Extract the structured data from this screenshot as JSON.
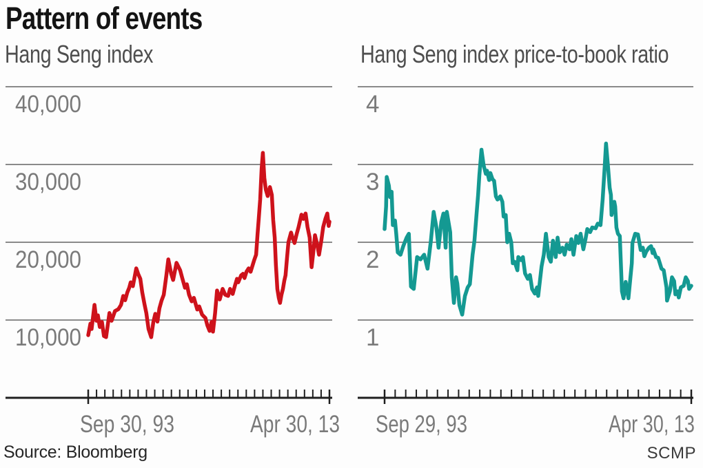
{
  "header": {
    "title": "Pattern of events"
  },
  "footer": {
    "source": "Source: Bloomberg",
    "credit": "SCMP"
  },
  "colors": {
    "left_line": "#ce121b",
    "right_line": "#149992",
    "grid": "#8a8a8a",
    "axis": "#1f1f1f",
    "label": "#7a7a7a"
  },
  "chart_data": [
    {
      "type": "line",
      "title": "Hang Seng index",
      "color": "#ce121b",
      "ylim": [
        0,
        40000
      ],
      "grid": true,
      "y_ticks": [
        {
          "value": 40000,
          "label": "40,000"
        },
        {
          "value": 30000,
          "label": "30,000"
        },
        {
          "value": 20000,
          "label": "20,000"
        },
        {
          "value": 10000,
          "label": "10,000"
        }
      ],
      "x_ticks": [
        {
          "label": "Sep 30, 93"
        },
        {
          "label": "Apr 30, 13"
        }
      ],
      "points": [
        [
          0.0,
          8050
        ],
        [
          0.009,
          9550
        ],
        [
          0.014,
          8850
        ],
        [
          0.026,
          11950
        ],
        [
          0.034,
          9900
        ],
        [
          0.04,
          10600
        ],
        [
          0.048,
          9100
        ],
        [
          0.057,
          9750
        ],
        [
          0.065,
          7950
        ],
        [
          0.074,
          7800
        ],
        [
          0.088,
          10900
        ],
        [
          0.097,
          9900
        ],
        [
          0.111,
          11150
        ],
        [
          0.125,
          11400
        ],
        [
          0.136,
          11950
        ],
        [
          0.145,
          13100
        ],
        [
          0.153,
          12550
        ],
        [
          0.162,
          13550
        ],
        [
          0.17,
          14150
        ],
        [
          0.176,
          14850
        ],
        [
          0.185,
          14350
        ],
        [
          0.199,
          16650
        ],
        [
          0.207,
          15950
        ],
        [
          0.216,
          15300
        ],
        [
          0.224,
          13550
        ],
        [
          0.233,
          12050
        ],
        [
          0.241,
          10900
        ],
        [
          0.25,
          8850
        ],
        [
          0.261,
          7800
        ],
        [
          0.27,
          9750
        ],
        [
          0.278,
          10800
        ],
        [
          0.287,
          9800
        ],
        [
          0.295,
          11500
        ],
        [
          0.304,
          12500
        ],
        [
          0.313,
          13250
        ],
        [
          0.324,
          15750
        ],
        [
          0.332,
          17800
        ],
        [
          0.344,
          15950
        ],
        [
          0.352,
          15150
        ],
        [
          0.366,
          17350
        ],
        [
          0.381,
          16400
        ],
        [
          0.389,
          15500
        ],
        [
          0.401,
          14150
        ],
        [
          0.409,
          14600
        ],
        [
          0.418,
          13250
        ],
        [
          0.429,
          12400
        ],
        [
          0.438,
          12850
        ],
        [
          0.452,
          11350
        ],
        [
          0.46,
          11750
        ],
        [
          0.472,
          10700
        ],
        [
          0.486,
          10250
        ],
        [
          0.494,
          9300
        ],
        [
          0.503,
          8600
        ],
        [
          0.511,
          9750
        ],
        [
          0.517,
          8500
        ],
        [
          0.526,
          10900
        ],
        [
          0.534,
          13800
        ],
        [
          0.545,
          12650
        ],
        [
          0.557,
          14000
        ],
        [
          0.568,
          13250
        ],
        [
          0.58,
          13100
        ],
        [
          0.588,
          14000
        ],
        [
          0.599,
          13350
        ],
        [
          0.608,
          14400
        ],
        [
          0.617,
          15300
        ],
        [
          0.622,
          14850
        ],
        [
          0.634,
          15750
        ],
        [
          0.642,
          15950
        ],
        [
          0.648,
          15400
        ],
        [
          0.656,
          16200
        ],
        [
          0.665,
          16650
        ],
        [
          0.673,
          16200
        ],
        [
          0.682,
          17100
        ],
        [
          0.688,
          17700
        ],
        [
          0.696,
          18400
        ],
        [
          0.702,
          21050
        ],
        [
          0.707,
          23000
        ],
        [
          0.713,
          25500
        ],
        [
          0.719,
          29450
        ],
        [
          0.724,
          31500
        ],
        [
          0.73,
          28300
        ],
        [
          0.736,
          26800
        ],
        [
          0.744,
          25950
        ],
        [
          0.753,
          27100
        ],
        [
          0.761,
          26100
        ],
        [
          0.767,
          22850
        ],
        [
          0.773,
          20600
        ],
        [
          0.778,
          17100
        ],
        [
          0.784,
          14000
        ],
        [
          0.79,
          12850
        ],
        [
          0.795,
          12200
        ],
        [
          0.801,
          13250
        ],
        [
          0.807,
          14000
        ],
        [
          0.813,
          15050
        ],
        [
          0.818,
          15750
        ],
        [
          0.824,
          17950
        ],
        [
          0.83,
          20000
        ],
        [
          0.835,
          20600
        ],
        [
          0.841,
          21250
        ],
        [
          0.847,
          20600
        ],
        [
          0.855,
          19900
        ],
        [
          0.864,
          21050
        ],
        [
          0.872,
          21950
        ],
        [
          0.884,
          23550
        ],
        [
          0.892,
          23000
        ],
        [
          0.901,
          23700
        ],
        [
          0.909,
          21950
        ],
        [
          0.918,
          20600
        ],
        [
          0.926,
          16800
        ],
        [
          0.935,
          19300
        ],
        [
          0.94,
          20900
        ],
        [
          0.949,
          19750
        ],
        [
          0.957,
          18400
        ],
        [
          0.966,
          20150
        ],
        [
          0.974,
          21950
        ],
        [
          0.983,
          23000
        ],
        [
          0.991,
          23700
        ],
        [
          0.997,
          22100
        ],
        [
          1.0,
          22650
        ]
      ]
    },
    {
      "type": "line",
      "title": "Hang Seng index price-to-book ratio",
      "color": "#149992",
      "ylim": [
        0,
        4
      ],
      "grid": true,
      "y_ticks": [
        {
          "value": 4,
          "label": "4"
        },
        {
          "value": 3,
          "label": "3"
        },
        {
          "value": 2,
          "label": "2"
        },
        {
          "value": 1,
          "label": "1"
        }
      ],
      "x_ticks": [
        {
          "label": "Sep 29, 93"
        },
        {
          "label": "Apr 30, 13"
        }
      ],
      "points": [
        [
          0.0,
          2.17
        ],
        [
          0.005,
          2.46
        ],
        [
          0.007,
          2.84
        ],
        [
          0.014,
          2.73
        ],
        [
          0.018,
          2.58
        ],
        [
          0.023,
          2.65
        ],
        [
          0.027,
          2.22
        ],
        [
          0.034,
          2.28
        ],
        [
          0.038,
          2.11
        ],
        [
          0.043,
          1.87
        ],
        [
          0.052,
          1.84
        ],
        [
          0.061,
          1.95
        ],
        [
          0.072,
          2.06
        ],
        [
          0.079,
          2.11
        ],
        [
          0.086,
          1.43
        ],
        [
          0.095,
          1.4
        ],
        [
          0.106,
          1.81
        ],
        [
          0.117,
          1.78
        ],
        [
          0.129,
          1.84
        ],
        [
          0.14,
          1.66
        ],
        [
          0.151,
          2.02
        ],
        [
          0.16,
          2.39
        ],
        [
          0.169,
          2.19
        ],
        [
          0.176,
          1.93
        ],
        [
          0.185,
          2.26
        ],
        [
          0.192,
          2.37
        ],
        [
          0.199,
          1.93
        ],
        [
          0.203,
          2.39
        ],
        [
          0.214,
          2.13
        ],
        [
          0.219,
          1.55
        ],
        [
          0.226,
          1.22
        ],
        [
          0.233,
          1.55
        ],
        [
          0.237,
          1.47
        ],
        [
          0.244,
          1.19
        ],
        [
          0.253,
          1.07
        ],
        [
          0.262,
          1.31
        ],
        [
          0.271,
          1.42
        ],
        [
          0.278,
          1.46
        ],
        [
          0.287,
          1.84
        ],
        [
          0.293,
          2.02
        ],
        [
          0.3,
          2.37
        ],
        [
          0.305,
          2.61
        ],
        [
          0.309,
          2.86
        ],
        [
          0.316,
          3.19
        ],
        [
          0.323,
          2.99
        ],
        [
          0.33,
          2.88
        ],
        [
          0.334,
          2.92
        ],
        [
          0.341,
          2.8
        ],
        [
          0.345,
          2.89
        ],
        [
          0.352,
          2.81
        ],
        [
          0.357,
          2.79
        ],
        [
          0.363,
          2.59
        ],
        [
          0.368,
          2.55
        ],
        [
          0.377,
          2.59
        ],
        [
          0.384,
          2.52
        ],
        [
          0.388,
          2.33
        ],
        [
          0.395,
          2.35
        ],
        [
          0.4,
          2.0
        ],
        [
          0.406,
          2.11
        ],
        [
          0.413,
          2.0
        ],
        [
          0.418,
          1.73
        ],
        [
          0.424,
          1.75
        ],
        [
          0.433,
          1.64
        ],
        [
          0.436,
          1.81
        ],
        [
          0.445,
          1.77
        ],
        [
          0.451,
          1.81
        ],
        [
          0.458,
          1.6
        ],
        [
          0.467,
          1.53
        ],
        [
          0.474,
          1.58
        ],
        [
          0.481,
          1.4
        ],
        [
          0.49,
          1.34
        ],
        [
          0.497,
          1.42
        ],
        [
          0.501,
          1.31
        ],
        [
          0.512,
          1.69
        ],
        [
          0.519,
          1.84
        ],
        [
          0.526,
          2.11
        ],
        [
          0.535,
          1.81
        ],
        [
          0.542,
          1.75
        ],
        [
          0.549,
          2.02
        ],
        [
          0.558,
          1.81
        ],
        [
          0.564,
          2.06
        ],
        [
          0.571,
          1.87
        ],
        [
          0.58,
          1.93
        ],
        [
          0.587,
          1.84
        ],
        [
          0.594,
          1.97
        ],
        [
          0.603,
          1.91
        ],
        [
          0.609,
          2.04
        ],
        [
          0.616,
          1.84
        ],
        [
          0.625,
          2.08
        ],
        [
          0.632,
          1.99
        ],
        [
          0.639,
          2.11
        ],
        [
          0.648,
          1.91
        ],
        [
          0.655,
          2.04
        ],
        [
          0.661,
          2.17
        ],
        [
          0.67,
          2.13
        ],
        [
          0.677,
          2.19
        ],
        [
          0.688,
          2.18
        ],
        [
          0.695,
          2.24
        ],
        [
          0.704,
          2.22
        ],
        [
          0.711,
          2.55
        ],
        [
          0.718,
          2.99
        ],
        [
          0.722,
          3.27
        ],
        [
          0.729,
          2.95
        ],
        [
          0.734,
          2.7
        ],
        [
          0.738,
          2.61
        ],
        [
          0.74,
          2.35
        ],
        [
          0.749,
          2.52
        ],
        [
          0.752,
          2.46
        ],
        [
          0.756,
          2.19
        ],
        [
          0.761,
          2.11
        ],
        [
          0.767,
          2.08
        ],
        [
          0.774,
          1.37
        ],
        [
          0.779,
          1.28
        ],
        [
          0.786,
          1.49
        ],
        [
          0.795,
          1.28
        ],
        [
          0.806,
          1.73
        ],
        [
          0.808,
          1.99
        ],
        [
          0.817,
          2.11
        ],
        [
          0.826,
          2.1
        ],
        [
          0.835,
          1.9
        ],
        [
          0.842,
          1.93
        ],
        [
          0.847,
          1.82
        ],
        [
          0.853,
          1.88
        ],
        [
          0.862,
          1.93
        ],
        [
          0.869,
          1.95
        ],
        [
          0.874,
          1.86
        ],
        [
          0.876,
          1.91
        ],
        [
          0.885,
          1.81
        ],
        [
          0.892,
          1.8
        ],
        [
          0.896,
          1.75
        ],
        [
          0.903,
          1.66
        ],
        [
          0.91,
          1.64
        ],
        [
          0.919,
          1.42
        ],
        [
          0.921,
          1.25
        ],
        [
          0.93,
          1.37
        ],
        [
          0.937,
          1.55
        ],
        [
          0.944,
          1.5
        ],
        [
          0.948,
          1.33
        ],
        [
          0.955,
          1.37
        ],
        [
          0.959,
          1.29
        ],
        [
          0.966,
          1.42
        ],
        [
          0.975,
          1.44
        ],
        [
          0.982,
          1.55
        ],
        [
          0.989,
          1.5
        ],
        [
          0.993,
          1.4
        ],
        [
          1.0,
          1.44
        ]
      ]
    }
  ]
}
